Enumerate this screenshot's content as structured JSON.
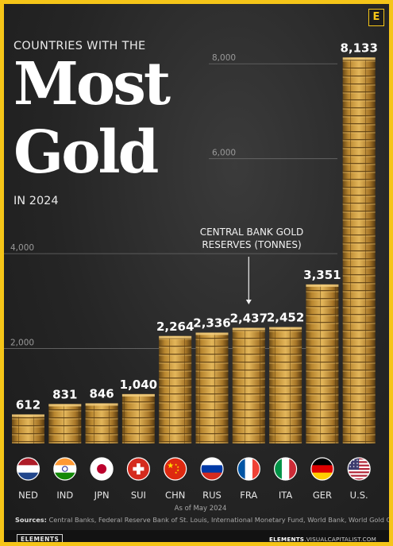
{
  "header": {
    "pre_title": "COUNTRIES WITH THE",
    "title_line1": "Most",
    "title_line2": "Gold",
    "subtitle": "IN 2024",
    "logo_letter": "E"
  },
  "annotation": {
    "line1": "CENTRAL BANK GOLD",
    "line2": "RESERVES (TONNES)"
  },
  "footer": {
    "note": "As of May 2024",
    "sources_label": "Sources:",
    "sources_text": "Central Banks, Federal Reserve Bank of St. Louis, International Monetary Fund, World Bank, World Gold Council",
    "brand_left": "ELEMENTS",
    "brand_right_bold": "ELEMENTS",
    "brand_right_rest": ".VISUALCAPITALIST.COM"
  },
  "colors": {
    "accent": "#f5c518",
    "background": "#252525",
    "gold": "#c99a3a"
  },
  "chart_data": {
    "type": "bar",
    "title": "Most Gold",
    "categories": [
      "NED",
      "IND",
      "JPN",
      "SUI",
      "CHN",
      "RUS",
      "FRA",
      "ITA",
      "GER",
      "U.S."
    ],
    "values": [
      612,
      831,
      846,
      1040,
      2264,
      2336,
      2437,
      2452,
      3351,
      8133
    ],
    "value_labels": [
      "612",
      "831",
      "846",
      "1,040",
      "2,264",
      "2,336",
      "2,437",
      "2,452",
      "3,351",
      "8,133"
    ],
    "flag_icons": [
      "flag-netherlands-icon",
      "flag-india-icon",
      "flag-japan-icon",
      "flag-switzerland-icon",
      "flag-china-icon",
      "flag-russia-icon",
      "flag-france-icon",
      "flag-italy-icon",
      "flag-germany-icon",
      "flag-usa-icon"
    ],
    "yticks": [
      2000,
      4000,
      6000,
      8000
    ],
    "ytick_labels": [
      "2,000",
      "4,000",
      "6,000",
      "8,000"
    ],
    "ylim": [
      0,
      8300
    ],
    "ylabel": "CENTRAL BANK GOLD RESERVES (TONNES)",
    "grid": true
  }
}
